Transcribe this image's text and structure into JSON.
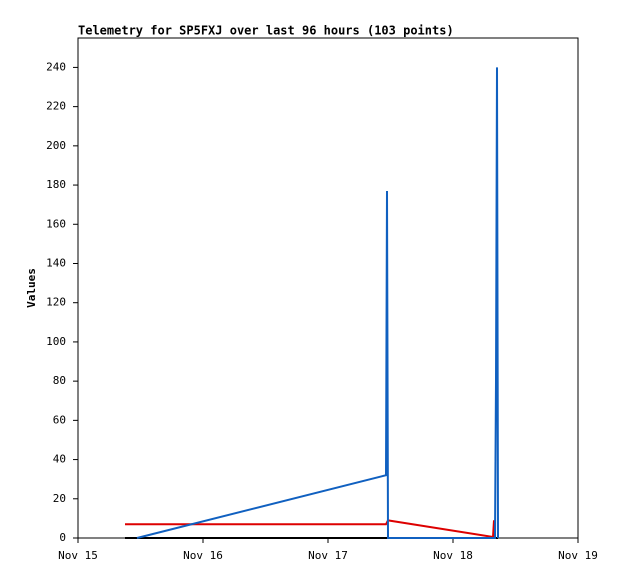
{
  "chart_data": {
    "type": "line",
    "title": "Telemetry for SP5FXJ over last 96 hours (103 points)",
    "y_label": "Values",
    "xlim": [
      0,
      4
    ],
    "ylim": [
      0,
      255
    ],
    "xticks": [
      {
        "value": 0,
        "label": "Nov 15"
      },
      {
        "value": 1,
        "label": "Nov 16"
      },
      {
        "value": 2,
        "label": "Nov 17"
      },
      {
        "value": 3,
        "label": "Nov 18"
      },
      {
        "value": 4,
        "label": "Nov 19"
      }
    ],
    "yticks": [
      0,
      20,
      40,
      60,
      80,
      100,
      120,
      140,
      160,
      180,
      200,
      220,
      240
    ],
    "grid": false,
    "series": [
      {
        "color": "#000000",
        "x": [
          0.376,
          3.36
        ],
        "values": [
          0,
          0
        ]
      },
      {
        "color": "#dd0000",
        "x": [
          0.376,
          2.464,
          2.48,
          3.32,
          3.328,
          3.336
        ],
        "values": [
          7,
          7,
          9,
          0.5,
          9,
          0
        ]
      },
      {
        "color": "#1060c0",
        "x": [
          0.472,
          2.464,
          2.472,
          2.48,
          3.336,
          3.344,
          3.352,
          3.36
        ],
        "values": [
          0,
          32,
          177,
          0,
          0,
          80,
          240,
          0
        ]
      }
    ]
  }
}
